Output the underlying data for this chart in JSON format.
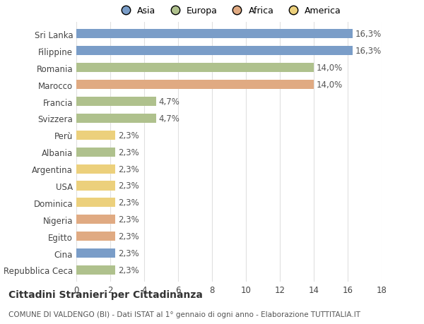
{
  "countries": [
    "Sri Lanka",
    "Filippine",
    "Romania",
    "Marocco",
    "Francia",
    "Svizzera",
    "Perù",
    "Albania",
    "Argentina",
    "USA",
    "Dominica",
    "Nigeria",
    "Egitto",
    "Cina",
    "Repubblica Ceca"
  ],
  "values": [
    16.3,
    16.3,
    14.0,
    14.0,
    4.7,
    4.7,
    2.3,
    2.3,
    2.3,
    2.3,
    2.3,
    2.3,
    2.3,
    2.3,
    2.3
  ],
  "labels": [
    "16,3%",
    "16,3%",
    "14,0%",
    "14,0%",
    "4,7%",
    "4,7%",
    "2,3%",
    "2,3%",
    "2,3%",
    "2,3%",
    "2,3%",
    "2,3%",
    "2,3%",
    "2,3%",
    "2,3%"
  ],
  "colors": [
    "#7a9dc8",
    "#7a9dc8",
    "#afc18d",
    "#e0aa82",
    "#afc18d",
    "#afc18d",
    "#ecd07c",
    "#afc18d",
    "#ecd07c",
    "#ecd07c",
    "#ecd07c",
    "#e0aa82",
    "#e0aa82",
    "#7a9dc8",
    "#afc18d"
  ],
  "legend_labels": [
    "Asia",
    "Europa",
    "Africa",
    "America"
  ],
  "legend_colors": [
    "#7a9dc8",
    "#afc18d",
    "#e0aa82",
    "#ecd07c"
  ],
  "xlim": [
    0,
    18
  ],
  "xticks": [
    0,
    2,
    4,
    6,
    8,
    10,
    12,
    14,
    16,
    18
  ],
  "title_main": "Cittadini Stranieri per Cittadinanza",
  "title_sub": "COMUNE DI VALDENGO (BI) - Dati ISTAT al 1° gennaio di ogni anno - Elaborazione TUTTITALIA.IT",
  "bar_height": 0.55,
  "background_color": "#ffffff",
  "grid_color": "#e0e0e0",
  "label_fontsize": 8.5,
  "tick_fontsize": 8.5,
  "title_fontsize": 10,
  "sub_fontsize": 7.5
}
